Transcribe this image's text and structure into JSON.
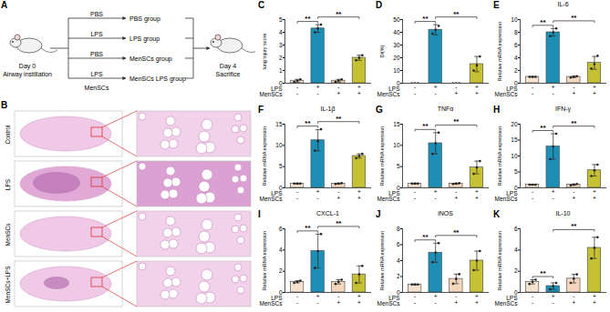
{
  "diagram": {
    "panel": "A",
    "start": {
      "day": "Day 0",
      "action": "Airway instillation"
    },
    "branches": [
      {
        "treatment": "PBS",
        "group": "PBS group"
      },
      {
        "treatment": "LPS",
        "group": "LPS group"
      },
      {
        "treatment": "PBS",
        "group": "MenSCs group"
      },
      {
        "treatment": "LPS",
        "group": "MenSCs LPS group"
      }
    ],
    "cell_label": "MenSCs",
    "end": {
      "day": "Day 4",
      "action": "Sacrifice"
    }
  },
  "histology": {
    "panel": "B",
    "rows": [
      "Control",
      "LPS",
      "MenSCs",
      "MenSCs+LPS"
    ]
  },
  "chart_data": [
    {
      "panel": "C",
      "type": "bar",
      "y_label": "lung injury score",
      "x_rows": [
        {
          "label": "LPS",
          "values": [
            "-",
            "+",
            "-",
            "+"
          ]
        },
        {
          "label": "MenSCs",
          "values": [
            "-",
            "-",
            "+",
            "+"
          ]
        }
      ],
      "values": [
        0.2,
        4.3,
        0.2,
        2.0
      ],
      "errors": [
        0.1,
        0.3,
        0.1,
        0.2
      ],
      "points": [
        [
          0.1,
          0.2,
          0.3
        ],
        [
          4.0,
          4.3,
          4.6
        ],
        [
          0.1,
          0.2,
          0.3
        ],
        [
          1.8,
          2.0,
          2.2
        ]
      ],
      "colors": [
        "#f6e3cf",
        "#1e8fb4",
        "#f3d6bc",
        "#c6c034"
      ],
      "ylim": [
        0,
        5
      ],
      "yticks": [
        0,
        1,
        2,
        3,
        4,
        5
      ],
      "significance": [
        {
          "from": 0,
          "to": 1,
          "label": "**"
        },
        {
          "from": 1,
          "to": 3,
          "label": "**"
        }
      ]
    },
    {
      "panel": "D",
      "type": "bar",
      "y_label": "DI(%)",
      "x_rows": [
        {
          "label": "LPS",
          "values": [
            "-",
            "+",
            "-",
            "+"
          ]
        },
        {
          "label": "MenSCs",
          "values": [
            "-",
            "-",
            "+",
            "+"
          ]
        }
      ],
      "values": [
        0,
        42,
        0,
        15
      ],
      "errors": [
        0,
        4,
        0,
        6
      ],
      "points": [
        [
          0,
          0,
          0
        ],
        [
          39,
          42,
          45
        ],
        [
          0,
          0,
          0
        ],
        [
          10,
          14,
          21
        ]
      ],
      "colors": [
        "#f6e3cf",
        "#1e8fb4",
        "#f3d6bc",
        "#c6c034"
      ],
      "ylim": [
        0,
        50
      ],
      "yticks": [
        0,
        10,
        20,
        30,
        40,
        50
      ],
      "significance": [
        {
          "from": 0,
          "to": 1,
          "label": "**"
        },
        {
          "from": 1,
          "to": 3,
          "label": "**"
        }
      ]
    },
    {
      "panel": "E",
      "type": "bar",
      "title": "IL-6",
      "y_label": "Relative mRNA expression",
      "x_rows": [
        {
          "label": "LPS",
          "values": [
            "-",
            "+",
            "-",
            "+"
          ]
        },
        {
          "label": "MenSCs",
          "values": [
            "-",
            "-",
            "+",
            "+"
          ]
        }
      ],
      "values": [
        1,
        8,
        1,
        3.2
      ],
      "errors": [
        0.05,
        0.6,
        0.1,
        1.0
      ],
      "points": [
        [
          1,
          1,
          1
        ],
        [
          7.4,
          8,
          8.6
        ],
        [
          0.9,
          1,
          1.1
        ],
        [
          2.3,
          3,
          4.3
        ]
      ],
      "colors": [
        "#f6e3cf",
        "#1e8fb4",
        "#f3d6bc",
        "#c6c034"
      ],
      "ylim": [
        0,
        10
      ],
      "yticks": [
        0,
        2,
        4,
        6,
        8,
        10
      ],
      "significance": [
        {
          "from": 0,
          "to": 1,
          "label": "**"
        },
        {
          "from": 1,
          "to": 3,
          "label": "**"
        }
      ]
    },
    {
      "panel": "F",
      "type": "bar",
      "title": "IL-1β",
      "y_label": "Relative mRNA expression",
      "x_rows": [
        {
          "label": "LPS",
          "values": [
            "-",
            "+",
            "-",
            "+"
          ]
        },
        {
          "label": "MenSCs",
          "values": [
            "-",
            "-",
            "+",
            "+"
          ]
        }
      ],
      "values": [
        1,
        11.2,
        1,
        7.5
      ],
      "errors": [
        0.1,
        2.5,
        0.1,
        0.5
      ],
      "points": [
        [
          1,
          1,
          1
        ],
        [
          8.8,
          11,
          13.8
        ],
        [
          0.9,
          1,
          1.1
        ],
        [
          7,
          7.5,
          8
        ]
      ],
      "colors": [
        "#f6e3cf",
        "#1e8fb4",
        "#f3d6bc",
        "#c6c034"
      ],
      "ylim": [
        0,
        15
      ],
      "yticks": [
        0,
        5,
        10,
        15
      ],
      "significance": [
        {
          "from": 0,
          "to": 1,
          "label": "**"
        },
        {
          "from": 1,
          "to": 3,
          "label": "**"
        }
      ]
    },
    {
      "panel": "G",
      "type": "bar",
      "title": "TNFα",
      "y_label": "Relative mRNA expression",
      "x_rows": [
        {
          "label": "LPS",
          "values": [
            "-",
            "+",
            "-",
            "+"
          ]
        },
        {
          "label": "MenSCs",
          "values": [
            "-",
            "-",
            "+",
            "+"
          ]
        }
      ],
      "values": [
        1,
        10.5,
        1,
        4.8
      ],
      "errors": [
        0.1,
        2.5,
        0.1,
        1.5
      ],
      "points": [
        [
          1,
          1,
          1
        ],
        [
          8,
          10.5,
          13
        ],
        [
          0.9,
          1,
          1.1
        ],
        [
          3.3,
          4.8,
          6.3
        ]
      ],
      "colors": [
        "#f6e3cf",
        "#1e8fb4",
        "#f3d6bc",
        "#c6c034"
      ],
      "ylim": [
        0,
        15
      ],
      "yticks": [
        0,
        5,
        10,
        15
      ],
      "significance": [
        {
          "from": 0,
          "to": 1,
          "label": "**"
        },
        {
          "from": 1,
          "to": 3,
          "label": "**"
        }
      ]
    },
    {
      "panel": "H",
      "type": "bar",
      "title": "IFN-γ",
      "y_label": "Relative mRNA expression",
      "x_rows": [
        {
          "label": "LPS",
          "values": [
            "-",
            "+",
            "-",
            "+"
          ]
        },
        {
          "label": "MenSCs",
          "values": [
            "-",
            "-",
            "+",
            "+"
          ]
        }
      ],
      "values": [
        1,
        13,
        1,
        5.5
      ],
      "errors": [
        0.1,
        4,
        0.2,
        1.8
      ],
      "points": [
        [
          1,
          1,
          1
        ],
        [
          9,
          13,
          17
        ],
        [
          0.8,
          1,
          1.2
        ],
        [
          3.7,
          5.5,
          7.3
        ]
      ],
      "colors": [
        "#f6e3cf",
        "#1e8fb4",
        "#f3d6bc",
        "#c6c034"
      ],
      "ylim": [
        0,
        20
      ],
      "yticks": [
        0,
        5,
        10,
        15,
        20
      ],
      "significance": [
        {
          "from": 0,
          "to": 1,
          "label": "**"
        },
        {
          "from": 1,
          "to": 3,
          "label": "**"
        }
      ]
    },
    {
      "panel": "I",
      "type": "bar",
      "title": "CXCL-1",
      "y_label": "Relative mRNA expression",
      "x_rows": [
        {
          "label": "LPS",
          "values": [
            "-",
            "+",
            "-",
            "+"
          ]
        },
        {
          "label": "MenSCs",
          "values": [
            "-",
            "-",
            "+",
            "+"
          ]
        }
      ],
      "values": [
        1,
        3.9,
        1,
        1.7
      ],
      "errors": [
        0.1,
        1.6,
        0.2,
        0.8
      ],
      "points": [
        [
          0.9,
          1,
          1.1
        ],
        [
          2.3,
          3.9,
          5.5
        ],
        [
          0.8,
          1,
          1.2
        ],
        [
          0.9,
          1.7,
          2.5
        ]
      ],
      "colors": [
        "#f6e3cf",
        "#1e8fb4",
        "#f3d6bc",
        "#c6c034"
      ],
      "ylim": [
        0,
        6
      ],
      "yticks": [
        0,
        2,
        4,
        6
      ],
      "significance": [
        {
          "from": 0,
          "to": 1,
          "label": "**"
        },
        {
          "from": 1,
          "to": 3,
          "label": "**"
        }
      ]
    },
    {
      "panel": "J",
      "type": "bar",
      "title": "iNOS",
      "y_label": "Relative mRNA expression",
      "x_rows": [
        {
          "label": "LPS",
          "values": [
            "-",
            "+",
            "-",
            "+"
          ]
        },
        {
          "label": "MenSCs",
          "values": [
            "-",
            "-",
            "+",
            "+"
          ]
        }
      ],
      "values": [
        1,
        5,
        1.7,
        4
      ],
      "errors": [
        0.05,
        1.2,
        0.6,
        1.2
      ],
      "points": [
        [
          1,
          1,
          1
        ],
        [
          3.8,
          5,
          6.2
        ],
        [
          1.1,
          1.7,
          2.3
        ],
        [
          2.8,
          4,
          5.2
        ]
      ],
      "colors": [
        "#f6e3cf",
        "#1e8fb4",
        "#f3d6bc",
        "#c6c034"
      ],
      "ylim": [
        0,
        8
      ],
      "yticks": [
        0,
        2,
        4,
        6,
        8
      ],
      "significance": [
        {
          "from": 0,
          "to": 1,
          "label": "**"
        },
        {
          "from": 1,
          "to": 3,
          "label": "**"
        }
      ]
    },
    {
      "panel": "K",
      "type": "bar",
      "title": "IL-10",
      "y_label": "Relative mRNA expression",
      "x_rows": [
        {
          "label": "LPS",
          "values": [
            "-",
            "+",
            "-",
            "+"
          ]
        },
        {
          "label": "MenSCs",
          "values": [
            "-",
            "-",
            "+",
            "+"
          ]
        }
      ],
      "values": [
        1,
        0.6,
        1.3,
        4.2
      ],
      "errors": [
        0.2,
        0.3,
        0.4,
        1
      ],
      "points": [
        [
          0.8,
          1,
          1.2
        ],
        [
          0.3,
          0.6,
          0.9
        ],
        [
          0.9,
          1.3,
          1.7
        ],
        [
          3.2,
          4.2,
          5.2
        ]
      ],
      "colors": [
        "#f6e3cf",
        "#1e8fb4",
        "#f3d6bc",
        "#c6c034"
      ],
      "ylim": [
        0,
        6
      ],
      "yticks": [
        0,
        2,
        4,
        6
      ],
      "significance": [
        {
          "from": 0,
          "to": 1,
          "label": "**"
        },
        {
          "from": 1,
          "to": 3,
          "label": "**"
        }
      ]
    }
  ]
}
